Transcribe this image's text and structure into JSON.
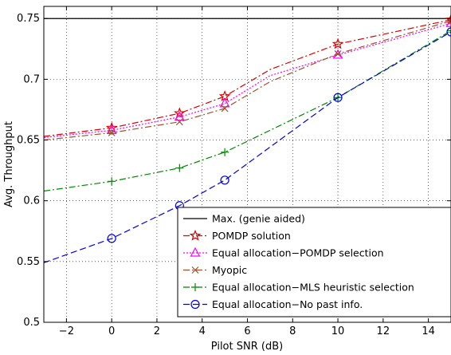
{
  "chart_data": {
    "type": "line",
    "xlabel": "Pilot SNR (dB)",
    "ylabel": "Avg. Throughput",
    "xlim": [
      -3,
      15
    ],
    "ylim": [
      0.5,
      0.76
    ],
    "xticks": [
      -2,
      0,
      2,
      4,
      6,
      8,
      10,
      12,
      14
    ],
    "yticks": [
      0.5,
      0.55,
      0.6,
      0.65,
      0.7,
      0.75
    ],
    "ytick_labels": [
      "0.5",
      "0.55",
      "0.6",
      "0.65",
      "0.7",
      "0.75"
    ],
    "grid": "dotted",
    "legend_position": "bottom-right",
    "series": [
      {
        "name": "Max. (genie aided)",
        "color": "#000000",
        "dash": "solid",
        "marker": "none",
        "x": [
          -3,
          15
        ],
        "y": [
          0.75,
          0.75
        ],
        "marker_x": []
      },
      {
        "name": "POMDP solution",
        "color": "#e00000",
        "dash": "dashdot",
        "marker": "star",
        "x": [
          -3,
          0,
          3,
          5,
          7,
          10,
          15
        ],
        "y": [
          0.653,
          0.66,
          0.672,
          0.686,
          0.708,
          0.729,
          0.749
        ],
        "marker_x": [
          0,
          3,
          5,
          10,
          15
        ]
      },
      {
        "name": "Equal allocation−POMDP selection",
        "color": "#ff00ff",
        "dash": "dotted",
        "marker": "triangle",
        "x": [
          -3,
          0,
          3,
          5,
          7,
          10,
          15
        ],
        "y": [
          0.652,
          0.658,
          0.669,
          0.68,
          0.703,
          0.72,
          0.746
        ],
        "marker_x": [
          0,
          3,
          5,
          10,
          15
        ]
      },
      {
        "name": "Myopic",
        "color": "#a0522d",
        "dash": "dashdot",
        "marker": "x",
        "x": [
          -3,
          0,
          3,
          5,
          7,
          10,
          15
        ],
        "y": [
          0.65,
          0.656,
          0.665,
          0.676,
          0.698,
          0.721,
          0.748
        ],
        "marker_x": [
          0,
          3,
          5,
          10,
          15
        ]
      },
      {
        "name": "Equal allocation−MLS heuristic selection",
        "color": "#008800",
        "dash": "dashdot",
        "marker": "plus",
        "x": [
          -3,
          0,
          3,
          5,
          10,
          15
        ],
        "y": [
          0.608,
          0.616,
          0.627,
          0.64,
          0.685,
          0.74
        ],
        "marker_x": [
          0,
          3,
          5,
          10,
          15
        ]
      },
      {
        "name": "Equal allocation−No past info.",
        "color": "#0000ee",
        "dash": "dashed",
        "marker": "circle",
        "x": [
          -3,
          0,
          3,
          5,
          10,
          15
        ],
        "y": [
          0.549,
          0.569,
          0.596,
          0.617,
          0.685,
          0.739
        ],
        "marker_x": [
          0,
          3,
          5,
          10,
          15
        ]
      }
    ]
  }
}
